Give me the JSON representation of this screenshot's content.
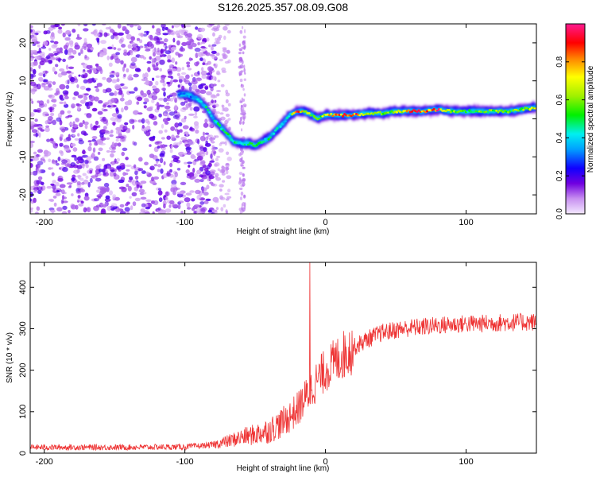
{
  "chart_data": [
    {
      "type": "heatmap",
      "title": "S126.2025.357.08.09.G08",
      "xlabel": "Height of straight line (km)",
      "ylabel": "Frequency (Hz)",
      "xlim": [
        -210,
        150
      ],
      "ylim": [
        -25,
        25
      ],
      "x_ticks": [
        -200,
        -100,
        0,
        100
      ],
      "y_ticks": [
        20,
        10,
        0,
        -10,
        -20
      ],
      "signal_ridge": {
        "x": [
          -100,
          -95,
          -90,
          -85,
          -80,
          -75,
          -70,
          -65,
          -60,
          -55,
          -50,
          -45,
          -40,
          -35,
          -30,
          -25,
          -20,
          -15,
          -10,
          -5,
          0,
          10,
          20,
          30,
          40,
          50,
          60,
          70,
          80,
          90,
          100,
          110,
          120,
          130,
          140,
          150
        ],
        "frequency": [
          6.5,
          6,
          5,
          3,
          0,
          -2,
          -4,
          -6,
          -6.5,
          -6.5,
          -7,
          -6,
          -5,
          -3,
          -1,
          1,
          2,
          2,
          1,
          0,
          1,
          1,
          1,
          1.5,
          1.5,
          2,
          2,
          2,
          2.5,
          2,
          2,
          2,
          2,
          2,
          2.5,
          3
        ],
        "amplitude": [
          0.3,
          0.35,
          0.4,
          0.45,
          0.4,
          0.45,
          0.5,
          0.45,
          0.45,
          0.5,
          0.5,
          0.45,
          0.45,
          0.4,
          0.4,
          0.45,
          0.85,
          0.7,
          0.6,
          0.55,
          0.7,
          0.85,
          0.9,
          0.7,
          0.55,
          0.6,
          0.9,
          0.85,
          0.9,
          0.6,
          0.5,
          0.55,
          0.6,
          0.55,
          0.6,
          0.65
        ]
      },
      "colorbar": {
        "label": "Normalized spectral amplitude",
        "range": [
          0,
          1
        ],
        "ticks": [
          "0.0",
          "0.2",
          "0.4",
          "0.6",
          "0.8"
        ],
        "colormap": "rainbow (light purple → violet → blue → cyan → green → yellow → red → magenta)"
      }
    },
    {
      "type": "line",
      "xlabel": "Height of straight line (km)",
      "ylabel": "SNR (10 * v/v)",
      "xlim": [
        -210,
        150
      ],
      "ylim": [
        0,
        460
      ],
      "x_ticks": [
        -200,
        -100,
        0,
        100
      ],
      "y_ticks": [
        0,
        100,
        200,
        300,
        400
      ],
      "color": "#ee3333",
      "series": [
        {
          "name": "SNR",
          "x": [
            -210,
            -150,
            -100,
            -80,
            -70,
            -60,
            -50,
            -40,
            -30,
            -20,
            -15,
            -10,
            -5,
            0,
            10,
            20,
            30,
            40,
            50,
            60,
            70,
            80,
            90,
            100,
            110,
            120,
            130,
            140,
            150
          ],
          "values": [
            14,
            14,
            15,
            20,
            28,
            38,
            45,
            55,
            75,
            105,
            130,
            155,
            180,
            200,
            230,
            255,
            275,
            290,
            297,
            302,
            305,
            308,
            310,
            312,
            312,
            314,
            315,
            316,
            316
          ],
          "spike": {
            "x": -11,
            "value": 460
          }
        }
      ]
    }
  ]
}
